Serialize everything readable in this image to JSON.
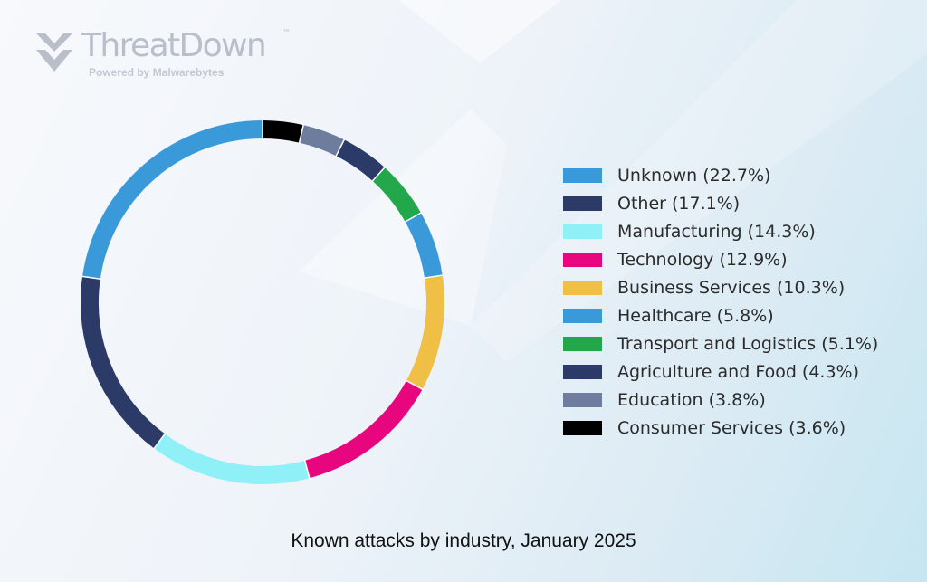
{
  "logo": {
    "name": "ThreatDown",
    "tm": "™",
    "tagline": "Powered by Malwarebytes"
  },
  "chart_data": {
    "type": "pie",
    "style": "donut",
    "title": "Known attacks by industry, January 2025",
    "legend_position": "right",
    "slices": [
      {
        "label": "Unknown (22.7%)",
        "name": "Unknown",
        "value": 22.7,
        "color": "#3a9ad9"
      },
      {
        "label": "Other (17.1%)",
        "name": "Other",
        "value": 17.1,
        "color": "#2b3a67"
      },
      {
        "label": "Manufacturing (14.3%)",
        "name": "Manufacturing",
        "value": 14.3,
        "color": "#8ff0f7"
      },
      {
        "label": "Technology (12.9%)",
        "name": "Technology",
        "value": 12.9,
        "color": "#e8067f"
      },
      {
        "label": "Business Services (10.3%)",
        "name": "Business Services",
        "value": 10.3,
        "color": "#f0bf45"
      },
      {
        "label": "Healthcare (5.8%)",
        "name": "Healthcare",
        "value": 5.8,
        "color": "#3a9ad9"
      },
      {
        "label": "Transport and Logistics (5.1%)",
        "name": "Transport and Logistics",
        "value": 5.1,
        "color": "#22a74b"
      },
      {
        "label": "Agriculture and Food (4.3%)",
        "name": "Agriculture and Food",
        "value": 4.3,
        "color": "#2b3a67"
      },
      {
        "label": "Education (3.8%)",
        "name": "Education",
        "value": 3.8,
        "color": "#6e7c9e"
      },
      {
        "label": "Consumer Services (3.6%)",
        "name": "Consumer Services",
        "value": 3.6,
        "color": "#000000"
      }
    ],
    "draw_order": [
      "Consumer Services",
      "Education",
      "Agriculture and Food",
      "Transport and Logistics",
      "Healthcare",
      "Business Services",
      "Technology",
      "Manufacturing",
      "Other",
      "Unknown"
    ],
    "direction": "clockwise from top"
  }
}
